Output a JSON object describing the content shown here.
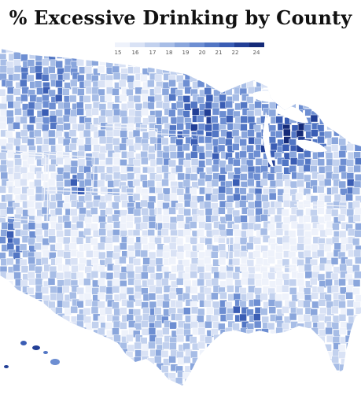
{
  "title": "% Excessive Drinking by County",
  "legend": {
    "ticks": [
      "15",
      "16",
      "17",
      "18",
      "19",
      "20",
      "21",
      "22",
      "24"
    ],
    "colors": [
      "#eef2fb",
      "#d9e2f5",
      "#c2d1ee",
      "#a7bde6",
      "#8aa6dc",
      "#6d8ed2",
      "#5276c4",
      "#3a5db4",
      "#223f96",
      "#142a78"
    ]
  },
  "map": {
    "subject": "counties of the contiguous United States, Alaska and Hawaii",
    "palette": {
      "water": "#ffffff",
      "county_border": "#ffffff",
      "state_border": "#f4f6fb"
    }
  }
}
